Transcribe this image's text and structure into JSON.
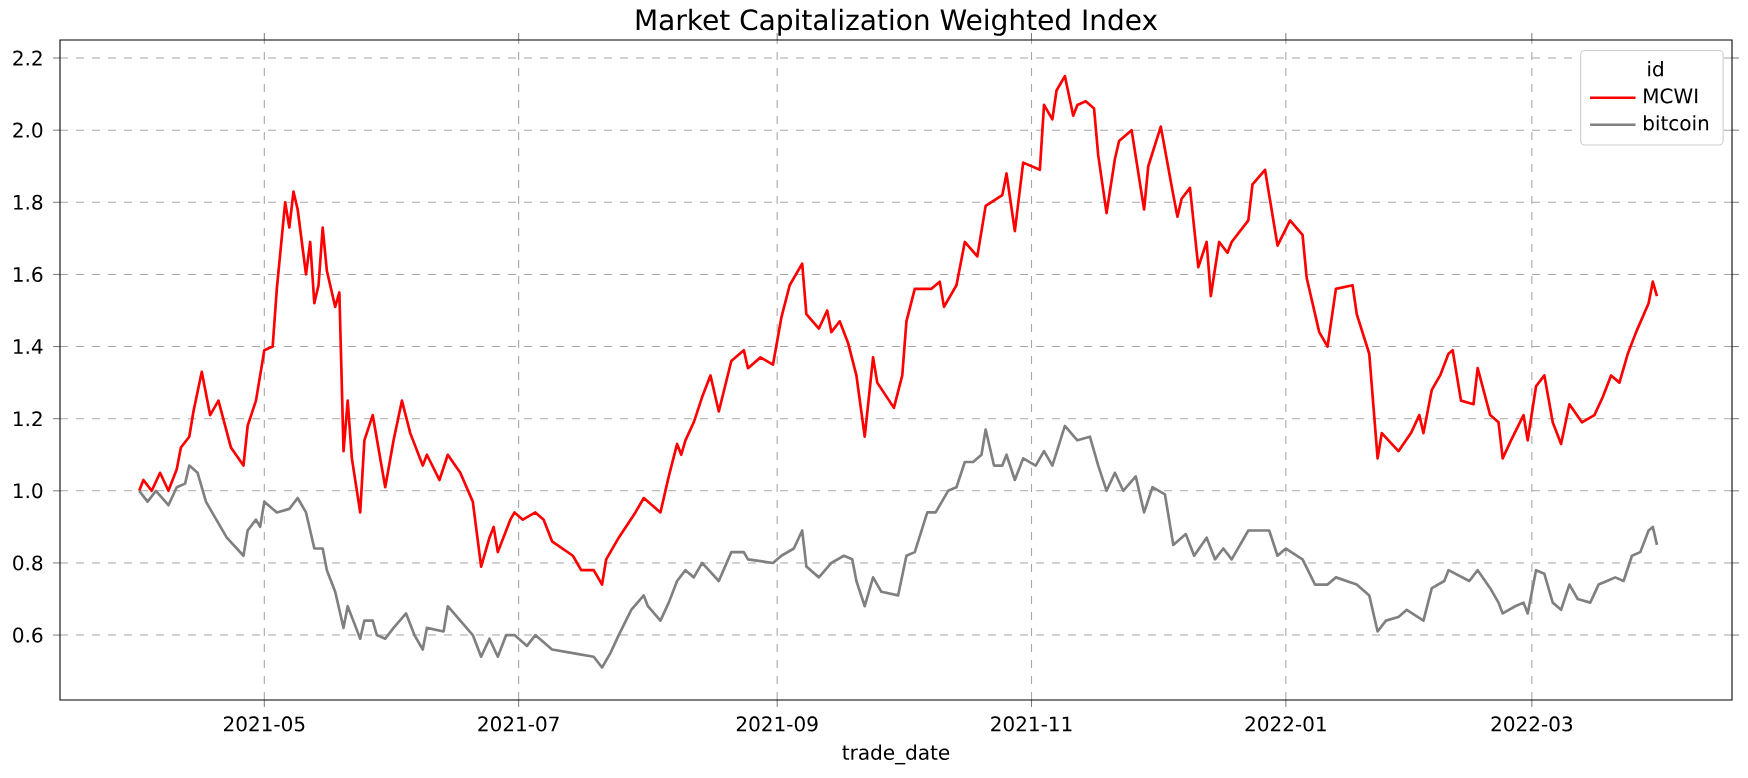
{
  "chart_data": {
    "type": "line",
    "title": "Market Capitalization Weighted Index",
    "xlabel": "trade_date",
    "legend_title": "id",
    "legend": "top right",
    "grid": true,
    "line_style": "solid",
    "xlim": [
      "2021-03-13",
      "2022-04-18"
    ],
    "xticks": [
      "2021-05",
      "2021-07",
      "2021-09",
      "2021-11",
      "2022-01",
      "2022-03"
    ],
    "ylim": [
      0.42,
      2.25
    ],
    "yticks": [
      0.6,
      0.8,
      {
        "value": 1.0,
        "label": "1.0"
      },
      1.2,
      1.4,
      1.6,
      1.8,
      {
        "value": 2.0,
        "label": "2.0"
      },
      2.2
    ],
    "series": [
      {
        "name": "MCWI",
        "color": "#ff0000",
        "x": [
          "2021-04-01",
          "2021-04-02",
          "2021-04-04",
          "2021-04-06",
          "2021-04-08",
          "2021-04-10",
          "2021-04-11",
          "2021-04-13",
          "2021-04-14",
          "2021-04-16",
          "2021-04-18",
          "2021-04-20",
          "2021-04-23",
          "2021-04-26",
          "2021-04-27",
          "2021-04-29",
          "2021-05-01",
          "2021-05-03",
          "2021-05-04",
          "2021-05-06",
          "2021-05-07",
          "2021-05-08",
          "2021-05-09",
          "2021-05-11",
          "2021-05-12",
          "2021-05-13",
          "2021-05-14",
          "2021-05-15",
          "2021-05-16",
          "2021-05-18",
          "2021-05-19",
          "2021-05-20",
          "2021-05-21",
          "2021-05-22",
          "2021-05-24",
          "2021-05-25",
          "2021-05-27",
          "2021-05-30",
          "2021-06-01",
          "2021-06-03",
          "2021-06-05",
          "2021-06-08",
          "2021-06-09",
          "2021-06-12",
          "2021-06-14",
          "2021-06-17",
          "2021-06-20",
          "2021-06-22",
          "2021-06-24",
          "2021-06-25",
          "2021-06-26",
          "2021-06-29",
          "2021-06-30",
          "2021-07-02",
          "2021-07-05",
          "2021-07-07",
          "2021-07-09",
          "2021-07-14",
          "2021-07-16",
          "2021-07-19",
          "2021-07-21",
          "2021-07-22",
          "2021-07-25",
          "2021-07-29",
          "2021-07-31",
          "2021-08-04",
          "2021-08-06",
          "2021-08-08",
          "2021-08-09",
          "2021-08-10",
          "2021-08-12",
          "2021-08-14",
          "2021-08-16",
          "2021-08-18",
          "2021-08-21",
          "2021-08-24",
          "2021-08-25",
          "2021-08-28",
          "2021-08-31",
          "2021-09-02",
          "2021-09-04",
          "2021-09-07",
          "2021-09-08",
          "2021-09-11",
          "2021-09-13",
          "2021-09-14",
          "2021-09-16",
          "2021-09-18",
          "2021-09-20",
          "2021-09-22",
          "2021-09-24",
          "2021-09-25",
          "2021-09-29",
          "2021-10-01",
          "2021-10-02",
          "2021-10-04",
          "2021-10-08",
          "2021-10-10",
          "2021-10-11",
          "2021-10-14",
          "2021-10-16",
          "2021-10-19",
          "2021-10-21",
          "2021-10-25",
          "2021-10-26",
          "2021-10-28",
          "2021-10-30",
          "2021-11-03",
          "2021-11-04",
          "2021-11-06",
          "2021-11-07",
          "2021-11-09",
          "2021-11-11",
          "2021-11-12",
          "2021-11-14",
          "2021-11-16",
          "2021-11-17",
          "2021-11-19",
          "2021-11-21",
          "2021-11-22",
          "2021-11-25",
          "2021-11-28",
          "2021-11-29",
          "2021-12-02",
          "2021-12-05",
          "2021-12-06",
          "2021-12-07",
          "2021-12-09",
          "2021-12-11",
          "2021-12-13",
          "2021-12-14",
          "2021-12-16",
          "2021-12-18",
          "2021-12-19",
          "2021-12-23",
          "2021-12-24",
          "2021-12-27",
          "2021-12-30",
          "2022-01-02",
          "2022-01-05",
          "2022-01-06",
          "2022-01-09",
          "2022-01-11",
          "2022-01-13",
          "2022-01-17",
          "2022-01-18",
          "2022-01-21",
          "2022-01-23",
          "2022-01-24",
          "2022-01-28",
          "2022-01-31",
          "2022-02-02",
          "2022-02-03",
          "2022-02-05",
          "2022-02-07",
          "2022-02-09",
          "2022-02-10",
          "2022-02-12",
          "2022-02-15",
          "2022-02-16",
          "2022-02-19",
          "2022-02-21",
          "2022-02-22",
          "2022-02-24",
          "2022-02-27",
          "2022-02-28",
          "2022-03-02",
          "2022-03-04",
          "2022-03-06",
          "2022-03-08",
          "2022-03-10",
          "2022-03-13",
          "2022-03-16",
          "2022-03-18",
          "2022-03-20",
          "2022-03-22",
          "2022-03-24",
          "2022-03-26",
          "2022-03-29",
          "2022-03-30",
          "2022-03-31"
        ],
        "values": [
          1.0,
          1.03,
          1.0,
          1.05,
          1.0,
          1.06,
          1.12,
          1.15,
          1.22,
          1.33,
          1.21,
          1.25,
          1.12,
          1.07,
          1.18,
          1.25,
          1.39,
          1.4,
          1.56,
          1.8,
          1.73,
          1.83,
          1.78,
          1.6,
          1.69,
          1.52,
          1.57,
          1.73,
          1.61,
          1.51,
          1.55,
          1.11,
          1.25,
          1.09,
          0.94,
          1.14,
          1.21,
          1.01,
          1.14,
          1.25,
          1.16,
          1.07,
          1.1,
          1.03,
          1.1,
          1.05,
          0.97,
          0.79,
          0.87,
          0.9,
          0.83,
          0.92,
          0.94,
          0.92,
          0.94,
          0.92,
          0.86,
          0.82,
          0.78,
          0.78,
          0.74,
          0.81,
          0.87,
          0.94,
          0.98,
          0.94,
          1.04,
          1.13,
          1.1,
          1.14,
          1.19,
          1.26,
          1.32,
          1.22,
          1.36,
          1.39,
          1.34,
          1.37,
          1.35,
          1.48,
          1.57,
          1.63,
          1.49,
          1.45,
          1.5,
          1.44,
          1.47,
          1.41,
          1.32,
          1.15,
          1.37,
          1.3,
          1.23,
          1.32,
          1.47,
          1.56,
          1.56,
          1.58,
          1.51,
          1.57,
          1.69,
          1.65,
          1.79,
          1.82,
          1.88,
          1.72,
          1.91,
          1.89,
          2.07,
          2.03,
          2.11,
          2.15,
          2.04,
          2.07,
          2.08,
          2.06,
          1.93,
          1.77,
          1.92,
          1.97,
          2.0,
          1.78,
          1.9,
          2.01,
          1.82,
          1.76,
          1.81,
          1.84,
          1.62,
          1.69,
          1.54,
          1.69,
          1.66,
          1.69,
          1.75,
          1.85,
          1.89,
          1.68,
          1.75,
          1.71,
          1.59,
          1.44,
          1.4,
          1.56,
          1.57,
          1.49,
          1.38,
          1.09,
          1.16,
          1.11,
          1.16,
          1.21,
          1.16,
          1.28,
          1.32,
          1.38,
          1.39,
          1.25,
          1.24,
          1.34,
          1.21,
          1.19,
          1.09,
          1.14,
          1.21,
          1.14,
          1.29,
          1.32,
          1.19,
          1.13,
          1.24,
          1.19,
          1.21,
          1.26,
          1.32,
          1.3,
          1.38,
          1.44,
          1.52,
          1.58,
          1.54
        ]
      },
      {
        "name": "bitcoin",
        "color": "#808080",
        "x": [
          "2021-04-01",
          "2021-04-03",
          "2021-04-05",
          "2021-04-08",
          "2021-04-10",
          "2021-04-12",
          "2021-04-13",
          "2021-04-15",
          "2021-04-17",
          "2021-04-19",
          "2021-04-22",
          "2021-04-26",
          "2021-04-27",
          "2021-04-29",
          "2021-04-30",
          "2021-05-01",
          "2021-05-03",
          "2021-05-04",
          "2021-05-07",
          "2021-05-09",
          "2021-05-11",
          "2021-05-13",
          "2021-05-15",
          "2021-05-16",
          "2021-05-18",
          "2021-05-20",
          "2021-05-21",
          "2021-05-23",
          "2021-05-24",
          "2021-05-25",
          "2021-05-27",
          "2021-05-28",
          "2021-05-30",
          "2021-06-01",
          "2021-06-04",
          "2021-06-06",
          "2021-06-08",
          "2021-06-09",
          "2021-06-13",
          "2021-06-14",
          "2021-06-17",
          "2021-06-20",
          "2021-06-22",
          "2021-06-24",
          "2021-06-26",
          "2021-06-28",
          "2021-06-30",
          "2021-07-03",
          "2021-07-05",
          "2021-07-09",
          "2021-07-14",
          "2021-07-19",
          "2021-07-21",
          "2021-07-23",
          "2021-07-25",
          "2021-07-28",
          "2021-07-31",
          "2021-08-01",
          "2021-08-04",
          "2021-08-06",
          "2021-08-08",
          "2021-08-10",
          "2021-08-12",
          "2021-08-14",
          "2021-08-18",
          "2021-08-21",
          "2021-08-24",
          "2021-08-25",
          "2021-08-31",
          "2021-09-02",
          "2021-09-05",
          "2021-09-07",
          "2021-09-08",
          "2021-09-11",
          "2021-09-14",
          "2021-09-17",
          "2021-09-19",
          "2021-09-20",
          "2021-09-22",
          "2021-09-24",
          "2021-09-26",
          "2021-09-30",
          "2021-10-02",
          "2021-10-04",
          "2021-10-07",
          "2021-10-09",
          "2021-10-12",
          "2021-10-14",
          "2021-10-16",
          "2021-10-18",
          "2021-10-20",
          "2021-10-21",
          "2021-10-23",
          "2021-10-25",
          "2021-10-26",
          "2021-10-28",
          "2021-10-30",
          "2021-11-02",
          "2021-11-04",
          "2021-11-06",
          "2021-11-09",
          "2021-11-12",
          "2021-11-15",
          "2021-11-17",
          "2021-11-19",
          "2021-11-21",
          "2021-11-23",
          "2021-11-26",
          "2021-11-28",
          "2021-11-30",
          "2021-12-03",
          "2021-12-05",
          "2021-12-08",
          "2021-12-10",
          "2021-12-13",
          "2021-12-15",
          "2021-12-17",
          "2021-12-19",
          "2021-12-23",
          "2021-12-28",
          "2021-12-30",
          "2022-01-01",
          "2022-01-05",
          "2022-01-08",
          "2022-01-11",
          "2022-01-13",
          "2022-01-18",
          "2022-01-21",
          "2022-01-23",
          "2022-01-25",
          "2022-01-28",
          "2022-01-30",
          "2022-02-03",
          "2022-02-05",
          "2022-02-08",
          "2022-02-09",
          "2022-02-14",
          "2022-02-16",
          "2022-02-19",
          "2022-02-21",
          "2022-02-22",
          "2022-02-25",
          "2022-02-27",
          "2022-02-28",
          "2022-03-02",
          "2022-03-04",
          "2022-03-06",
          "2022-03-08",
          "2022-03-10",
          "2022-03-12",
          "2022-03-15",
          "2022-03-17",
          "2022-03-19",
          "2022-03-21",
          "2022-03-23",
          "2022-03-25",
          "2022-03-27",
          "2022-03-29",
          "2022-03-30",
          "2022-03-31"
        ],
        "values": [
          1.0,
          0.97,
          1.0,
          0.96,
          1.01,
          1.02,
          1.07,
          1.05,
          0.97,
          0.93,
          0.87,
          0.82,
          0.89,
          0.92,
          0.9,
          0.97,
          0.95,
          0.94,
          0.95,
          0.98,
          0.94,
          0.84,
          0.84,
          0.78,
          0.72,
          0.62,
          0.68,
          0.62,
          0.59,
          0.64,
          0.64,
          0.6,
          0.59,
          0.62,
          0.66,
          0.6,
          0.56,
          0.62,
          0.61,
          0.68,
          0.64,
          0.6,
          0.54,
          0.59,
          0.54,
          0.6,
          0.6,
          0.57,
          0.6,
          0.56,
          0.55,
          0.54,
          0.51,
          0.55,
          0.6,
          0.67,
          0.71,
          0.68,
          0.64,
          0.69,
          0.75,
          0.78,
          0.76,
          0.8,
          0.75,
          0.83,
          0.83,
          0.81,
          0.8,
          0.82,
          0.84,
          0.89,
          0.79,
          0.76,
          0.8,
          0.82,
          0.81,
          0.75,
          0.68,
          0.76,
          0.72,
          0.71,
          0.82,
          0.83,
          0.94,
          0.94,
          1.0,
          1.01,
          1.08,
          1.08,
          1.1,
          1.17,
          1.07,
          1.07,
          1.1,
          1.03,
          1.09,
          1.07,
          1.11,
          1.07,
          1.18,
          1.14,
          1.15,
          1.07,
          1.0,
          1.05,
          1.0,
          1.04,
          0.94,
          1.01,
          0.99,
          0.85,
          0.88,
          0.82,
          0.87,
          0.81,
          0.84,
          0.81,
          0.89,
          0.89,
          0.82,
          0.84,
          0.81,
          0.74,
          0.74,
          0.76,
          0.74,
          0.71,
          0.61,
          0.64,
          0.65,
          0.67,
          0.64,
          0.73,
          0.75,
          0.78,
          0.75,
          0.78,
          0.73,
          0.69,
          0.66,
          0.68,
          0.69,
          0.66,
          0.78,
          0.77,
          0.69,
          0.67,
          0.74,
          0.7,
          0.69,
          0.74,
          0.75,
          0.76,
          0.75,
          0.82,
          0.83,
          0.89,
          0.9,
          0.85
        ]
      }
    ]
  }
}
